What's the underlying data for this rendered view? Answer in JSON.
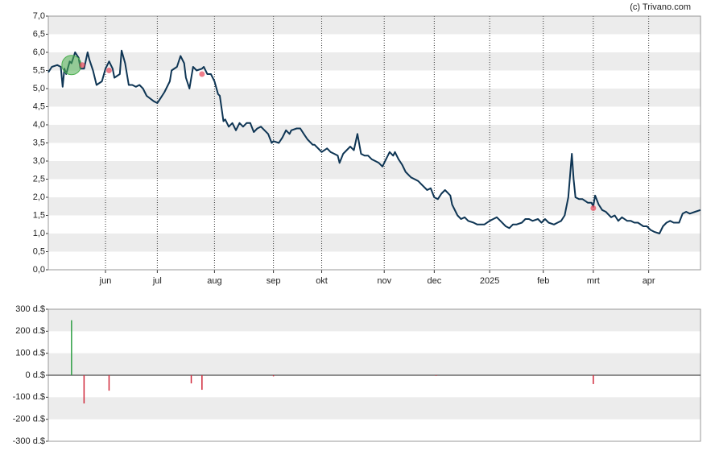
{
  "credit": "(c) Trivano.com",
  "chart_data": [
    {
      "type": "line",
      "xlim": [
        0,
        365
      ],
      "xticks": [
        {
          "value": 32,
          "label": "jun"
        },
        {
          "value": 61,
          "label": "jul"
        },
        {
          "value": 93,
          "label": "aug"
        },
        {
          "value": 126,
          "label": "sep"
        },
        {
          "value": 153,
          "label": "okt"
        },
        {
          "value": 188,
          "label": "nov"
        },
        {
          "value": 216,
          "label": "dec"
        },
        {
          "value": 247,
          "label": "2025"
        },
        {
          "value": 277,
          "label": "feb"
        },
        {
          "value": 305,
          "label": "mrt"
        },
        {
          "value": 336,
          "label": "apr"
        }
      ],
      "ylim": [
        0,
        7
      ],
      "yticks": [
        {
          "value": 0,
          "label": "0,0"
        },
        {
          "value": 0.5,
          "label": "0,5"
        },
        {
          "value": 1,
          "label": "1,0"
        },
        {
          "value": 1.5,
          "label": "1,5"
        },
        {
          "value": 2,
          "label": "2,0"
        },
        {
          "value": 2.5,
          "label": "2,5"
        },
        {
          "value": 3,
          "label": "3,0"
        },
        {
          "value": 3.5,
          "label": "3,5"
        },
        {
          "value": 4,
          "label": "4,0"
        },
        {
          "value": 4.5,
          "label": "4,5"
        },
        {
          "value": 5,
          "label": "5,0"
        },
        {
          "value": 5.5,
          "label": "5,5"
        },
        {
          "value": 6,
          "label": "6,0"
        },
        {
          "value": 6.5,
          "label": "6,5"
        },
        {
          "value": 7,
          "label": "7,0"
        }
      ],
      "band_color": "#ececec",
      "color": "#0e3554",
      "x": [
        0,
        2,
        5,
        7,
        8,
        9,
        10,
        12,
        13,
        15,
        17,
        18,
        20,
        22,
        23,
        25,
        27,
        30,
        32,
        34,
        36,
        37,
        40,
        41,
        43,
        45,
        47,
        49,
        51,
        53,
        55,
        59,
        61,
        63,
        65,
        68,
        69,
        72,
        74,
        76,
        77,
        79,
        81,
        83,
        86,
        87,
        89,
        91,
        93,
        95,
        96,
        98,
        99,
        101,
        103,
        105,
        107,
        109,
        111,
        113,
        115,
        117,
        119,
        121,
        123,
        125,
        126,
        129,
        131,
        133,
        135,
        136,
        139,
        141,
        143,
        145,
        148,
        149,
        152,
        153,
        156,
        158,
        160,
        162,
        163,
        165,
        167,
        169,
        171,
        173,
        175,
        177,
        179,
        181,
        183,
        185,
        187,
        189,
        191,
        193,
        194,
        196,
        198,
        200,
        203,
        205,
        207,
        209,
        212,
        214,
        216,
        218,
        220,
        222,
        225,
        226,
        229,
        231,
        233,
        235,
        238,
        240,
        242,
        244,
        247,
        249,
        251,
        253,
        256,
        258,
        260,
        262,
        265,
        267,
        269,
        271,
        274,
        276,
        278,
        280,
        283,
        285,
        287,
        289,
        291,
        293,
        294,
        295,
        297,
        299,
        302,
        304,
        305,
        306,
        308,
        310,
        312,
        315,
        317,
        319,
        321,
        324,
        326,
        328,
        330,
        333,
        335,
        337,
        339,
        342,
        344,
        346,
        348,
        350,
        353,
        355,
        357,
        359,
        362,
        365
      ],
      "values": [
        5.45,
        5.6,
        5.65,
        5.6,
        5.05,
        5.55,
        5.4,
        5.75,
        5.7,
        6.0,
        5.85,
        5.55,
        5.55,
        6.0,
        5.8,
        5.5,
        5.1,
        5.2,
        5.55,
        5.75,
        5.55,
        5.3,
        5.4,
        6.05,
        5.7,
        5.1,
        5.1,
        5.05,
        5.1,
        5.0,
        4.8,
        4.65,
        4.6,
        4.75,
        4.9,
        5.2,
        5.5,
        5.6,
        5.9,
        5.7,
        5.3,
        5.0,
        5.6,
        5.5,
        5.55,
        5.6,
        5.4,
        5.4,
        5.2,
        4.85,
        4.8,
        4.1,
        4.15,
        3.95,
        4.05,
        3.85,
        4.05,
        3.95,
        4.05,
        4.05,
        3.8,
        3.9,
        3.95,
        3.85,
        3.75,
        3.5,
        3.55,
        3.5,
        3.65,
        3.85,
        3.75,
        3.85,
        3.9,
        3.9,
        3.75,
        3.6,
        3.45,
        3.45,
        3.3,
        3.25,
        3.35,
        3.25,
        3.2,
        3.15,
        2.95,
        3.2,
        3.3,
        3.4,
        3.3,
        3.75,
        3.2,
        3.15,
        3.15,
        3.05,
        3.0,
        2.95,
        2.85,
        3.05,
        3.25,
        3.15,
        3.25,
        3.05,
        2.9,
        2.7,
        2.55,
        2.5,
        2.45,
        2.35,
        2.2,
        2.25,
        2.0,
        1.95,
        2.1,
        2.2,
        2.05,
        1.8,
        1.5,
        1.4,
        1.45,
        1.35,
        1.3,
        1.25,
        1.25,
        1.25,
        1.35,
        1.4,
        1.45,
        1.35,
        1.2,
        1.15,
        1.25,
        1.25,
        1.3,
        1.4,
        1.4,
        1.35,
        1.4,
        1.3,
        1.4,
        1.3,
        1.25,
        1.3,
        1.35,
        1.5,
        2.0,
        3.2,
        2.5,
        2.0,
        1.95,
        1.95,
        1.85,
        1.85,
        1.75,
        2.05,
        1.8,
        1.65,
        1.6,
        1.45,
        1.5,
        1.35,
        1.45,
        1.35,
        1.35,
        1.3,
        1.3,
        1.2,
        1.2,
        1.1,
        1.05,
        1.0,
        1.2,
        1.3,
        1.35,
        1.3,
        1.3,
        1.55,
        1.6,
        1.55,
        1.6,
        1.65
      ],
      "buy_markers": {
        "color": "#4caf50",
        "x": [
          13
        ],
        "values": [
          5.65
        ]
      },
      "sell_markers": {
        "color": "#e8475a",
        "x": [
          19,
          34,
          86,
          305
        ],
        "values": [
          5.65,
          5.5,
          5.4,
          1.7
        ]
      }
    },
    {
      "type": "bar",
      "xlim": [
        0,
        365
      ],
      "ylim": [
        -300,
        300
      ],
      "yticks": [
        {
          "value": -300,
          "label": "-300 d.$"
        },
        {
          "value": -200,
          "label": "-200 d.$"
        },
        {
          "value": -100,
          "label": "-100 d.$"
        },
        {
          "value": 0,
          "label": "0 d.$"
        },
        {
          "value": 100,
          "label": "100 d.$"
        },
        {
          "value": 200,
          "label": "200 d.$"
        },
        {
          "value": 300,
          "label": "300 d.$"
        }
      ],
      "band_color": "#ececec",
      "positive_color": "#2e9e44",
      "negative_color": "#d0283a",
      "x": [
        13,
        20,
        34,
        80,
        86,
        126,
        217,
        305
      ],
      "values": [
        250,
        -128,
        -70,
        -37,
        -66,
        -5,
        -3,
        -40
      ]
    }
  ]
}
